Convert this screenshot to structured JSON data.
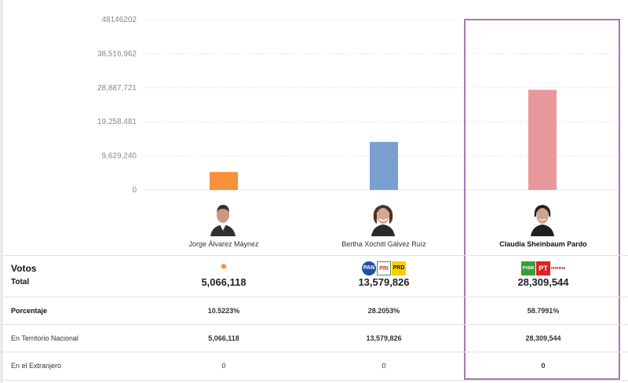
{
  "chart_data": {
    "type": "bar",
    "categories": [
      "Jorge Álvarez Máynez",
      "Bertha Xóchitl Gálvez Ruíz",
      "Claudia Sheinbaum Pardo"
    ],
    "values": [
      5066118,
      13579826,
      28309544
    ],
    "colors": [
      "#f7903a",
      "#7a9fd0",
      "#e8989a"
    ],
    "ylim": [
      0,
      48146202
    ],
    "y_ticks": [
      0,
      9629240,
      19258481,
      28887721,
      38516962,
      48146202
    ],
    "y_tick_labels": [
      "0",
      "9,629,240",
      "19,258,481",
      "28,887,721",
      "38,516,962",
      "48146202"
    ],
    "grid": true,
    "highlighted_category": "Claudia Sheinbaum Pardo"
  },
  "candidates": [
    {
      "name": "Jorge Álvarez Máynez",
      "parties": [
        {
          "label": "MC",
          "color": "#f7903a"
        }
      ],
      "total": "5,066,118",
      "porcentaje": "10.5223%",
      "territorio": "5,066,118",
      "extranjero": "0"
    },
    {
      "name": "Bertha Xóchitl Gálvez Ruíz",
      "parties": [
        {
          "label": "PAN",
          "color": "#1f4fa8"
        },
        {
          "label": "PRI",
          "color": "#e2212b"
        },
        {
          "label": "PRD",
          "color": "#f6d000"
        }
      ],
      "total": "13,579,826",
      "porcentaje": "28.2053%",
      "territorio": "13,579,826",
      "extranjero": "0"
    },
    {
      "name": "Claudia Sheinbaum Pardo",
      "parties": [
        {
          "label": "PVEM",
          "color": "#3a9d3a"
        },
        {
          "label": "PT",
          "color": "#e01f26"
        },
        {
          "label": "morena",
          "color": "#a0232c"
        }
      ],
      "total": "28,309,544",
      "porcentaje": "58.7991%",
      "territorio": "28,309,544",
      "extranjero": "0"
    }
  ],
  "table": {
    "votos_label": "Votos",
    "total_label": "Total",
    "porcentaje_label": "Porcentaje",
    "territorio_label": "En Territorio Nacional",
    "extranjero_label": "En el Extranjero"
  },
  "icons": {
    "avatar": "person-photo-icon",
    "party": "party-logo-icon"
  }
}
